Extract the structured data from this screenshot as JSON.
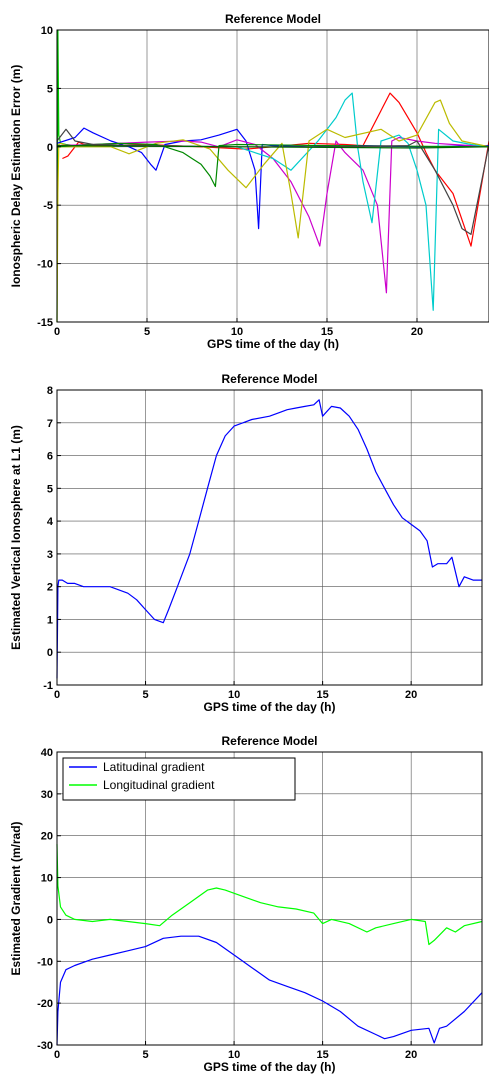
{
  "chart_data": [
    {
      "type": "line",
      "title": "Reference Model",
      "xlabel": "GPS time of the day (h)",
      "ylabel": "Ionospheric Delay Estimation Error (m)",
      "xlim": [
        0,
        24
      ],
      "ylim": [
        -15,
        10
      ],
      "xticks": [
        0,
        5,
        10,
        15,
        20
      ],
      "yticks": [
        -15,
        -10,
        -5,
        0,
        5,
        10
      ],
      "grid": true,
      "series": [
        {
          "color": "#00cc00",
          "x": [
            0,
            0.05,
            0.1,
            0.2,
            0.5,
            1.0
          ],
          "y": [
            -15,
            10,
            1.0,
            0.3,
            0.2,
            0.1
          ]
        },
        {
          "color": "#cccc00",
          "x": [
            0,
            0.05,
            0.1,
            0.2,
            0.5
          ],
          "y": [
            -15,
            -4,
            0.2,
            0.3,
            0.1
          ]
        },
        {
          "color": "#ff0000",
          "x": [
            0.3,
            0.6,
            0.9,
            1.2,
            1.5,
            3.0,
            5.0,
            8.0,
            10.5,
            12.0,
            14.0,
            16.0,
            17.0,
            18.5,
            19.0,
            19.5,
            20.0,
            20.5,
            21.0,
            22.0,
            23.0,
            24.0
          ],
          "y": [
            -1.0,
            -0.8,
            -0.2,
            0.4,
            0.2,
            0.1,
            0.2,
            0.0,
            -0.2,
            0.0,
            0.3,
            0.2,
            0.1,
            4.6,
            3.8,
            2.5,
            1.2,
            -0.5,
            -2.0,
            -4.0,
            -8.5,
            0.5
          ]
        },
        {
          "color": "#0000ff",
          "x": [
            0.0,
            1.0,
            1.5,
            2.0,
            3.0,
            4.0,
            4.7,
            5.2,
            5.5,
            6.0,
            7.0,
            8.0,
            9.0,
            10.0,
            10.5,
            11.0,
            11.2,
            11.4,
            12.0,
            14.0,
            17.0,
            20.0,
            24.0
          ],
          "y": [
            0.3,
            0.8,
            1.6,
            1.2,
            0.5,
            0.0,
            -0.5,
            -1.5,
            -2.0,
            0.2,
            0.5,
            0.6,
            1.0,
            1.5,
            0.5,
            -2.0,
            -7.0,
            0.2,
            0.1,
            0.0,
            0.1,
            0.0,
            0.1
          ]
        },
        {
          "color": "#cc00cc",
          "x": [
            0.0,
            2.0,
            5.0,
            7.0,
            8.0,
            9.0,
            10.0,
            11.0,
            12.0,
            13.0,
            14.0,
            14.6,
            15.0,
            15.5,
            16.0,
            17.0,
            17.8,
            18.3,
            18.6,
            19.0,
            20.0,
            21.0,
            22.0,
            23.0,
            24.0
          ],
          "y": [
            0.1,
            0.2,
            0.4,
            0.5,
            0.4,
            0.0,
            0.6,
            0.2,
            -1.0,
            -3.0,
            -6.0,
            -8.5,
            -4.0,
            0.5,
            -0.5,
            -2.0,
            -5.0,
            -12.5,
            0.5,
            0.8,
            0.5,
            0.3,
            0.2,
            0.1,
            0.0
          ]
        },
        {
          "color": "#00cccc",
          "x": [
            0.0,
            5.0,
            10.0,
            12.0,
            13.0,
            14.5,
            15.5,
            16.0,
            16.4,
            16.7,
            17.0,
            17.5,
            18.0,
            19.0,
            19.5,
            20.0,
            20.5,
            20.9,
            21.2,
            22.0,
            23.0,
            24.0
          ],
          "y": [
            0.0,
            0.1,
            0.0,
            -1.0,
            -2.0,
            0.5,
            2.5,
            4.0,
            4.6,
            0.0,
            -3.0,
            -6.5,
            0.5,
            1.0,
            0.3,
            -2.0,
            -5.0,
            -14.0,
            1.5,
            0.5,
            0.2,
            0.0
          ]
        },
        {
          "color": "#bbbb00",
          "x": [
            0.0,
            3.0,
            4.0,
            5.5,
            7.0,
            8.5,
            9.5,
            10.5,
            11.5,
            12.5,
            13.0,
            13.4,
            14.0,
            15.0,
            16.0,
            18.0,
            19.0,
            20.0,
            21.0,
            21.3,
            21.8,
            22.5,
            24.0
          ],
          "y": [
            0.0,
            0.0,
            -0.6,
            0.3,
            0.6,
            -0.2,
            -2.0,
            -3.5,
            -1.5,
            0.3,
            -4.0,
            -7.8,
            0.5,
            1.5,
            0.8,
            1.5,
            0.5,
            1.0,
            3.8,
            4.0,
            2.0,
            0.5,
            0.0
          ]
        },
        {
          "color": "#008800",
          "x": [
            0.0,
            2.0,
            3.5,
            5.5,
            6.0,
            7.0,
            7.5,
            8.0,
            8.5,
            8.8,
            9.0,
            10.0,
            15.0,
            24.0
          ],
          "y": [
            0.0,
            0.2,
            0.3,
            0.2,
            0.0,
            -0.5,
            -1.0,
            -1.5,
            -2.5,
            -3.4,
            0.1,
            0.2,
            0.1,
            0.0
          ]
        },
        {
          "color": "#444444",
          "x": [
            0.0,
            0.5,
            1.0,
            2.0,
            5.0,
            10.0,
            15.0,
            19.5,
            20.0,
            21.0,
            22.0,
            22.5,
            23.0,
            24.0
          ],
          "y": [
            0.5,
            1.5,
            0.5,
            0.2,
            0.1,
            0.0,
            0.0,
            0.1,
            0.5,
            -2.0,
            -5.0,
            -7.0,
            -7.5,
            0.2
          ]
        },
        {
          "color": "#006600",
          "x": [
            0.0,
            10.0,
            20.0,
            24.0
          ],
          "y": [
            0.1,
            0.0,
            -0.1,
            0.0
          ]
        }
      ]
    },
    {
      "type": "line",
      "title": "Reference Model",
      "xlabel": "GPS time of the day (h)",
      "ylabel": "Estimated Vertical Ionosphere at L1 (m)",
      "xlim": [
        0,
        24
      ],
      "ylim": [
        -1,
        8
      ],
      "xticks": [
        0,
        5,
        10,
        15,
        20
      ],
      "yticks": [
        -1,
        0,
        1,
        2,
        3,
        4,
        5,
        6,
        7,
        8
      ],
      "grid": true,
      "series": [
        {
          "color": "#0000ff",
          "x": [
            0.0,
            0.05,
            0.1,
            0.3,
            0.6,
            1.0,
            1.5,
            2.0,
            3.0,
            4.0,
            4.5,
            5.0,
            5.5,
            6.0,
            6.3,
            6.8,
            7.5,
            8.0,
            8.5,
            9.0,
            9.5,
            10.0,
            10.5,
            11.0,
            12.0,
            12.5,
            13.0,
            13.5,
            14.0,
            14.5,
            14.8,
            15.0,
            15.5,
            16.0,
            16.5,
            17.0,
            17.5,
            18.0,
            18.5,
            19.0,
            19.5,
            20.0,
            20.5,
            20.9,
            21.2,
            21.5,
            22.0,
            22.3,
            22.7,
            23.0,
            23.5,
            24.0
          ],
          "y": [
            -0.8,
            2.0,
            2.2,
            2.2,
            2.1,
            2.1,
            2.0,
            2.0,
            2.0,
            1.8,
            1.6,
            1.3,
            1.0,
            0.9,
            1.3,
            2.0,
            3.0,
            4.0,
            5.0,
            6.0,
            6.6,
            6.9,
            7.0,
            7.1,
            7.2,
            7.3,
            7.4,
            7.45,
            7.5,
            7.55,
            7.7,
            7.2,
            7.5,
            7.45,
            7.2,
            6.8,
            6.2,
            5.5,
            5.0,
            4.5,
            4.1,
            3.9,
            3.7,
            3.4,
            2.6,
            2.7,
            2.7,
            2.9,
            2.0,
            2.3,
            2.2,
            2.2
          ]
        }
      ]
    },
    {
      "type": "line",
      "title": "Reference Model",
      "xlabel": "GPS time of the day (h)",
      "ylabel": "Estimated Gradient (m/rad)",
      "xlim": [
        0,
        24
      ],
      "ylim": [
        -30,
        40
      ],
      "xticks": [
        0,
        5,
        10,
        15,
        20
      ],
      "yticks": [
        -30,
        -20,
        -10,
        0,
        10,
        20,
        30,
        40
      ],
      "grid": true,
      "legend": "top-left",
      "series": [
        {
          "name": "Latitudinal gradient",
          "color": "#0000ff",
          "x": [
            0.0,
            0.05,
            0.2,
            0.5,
            1.0,
            2.0,
            3.0,
            4.0,
            5.0,
            6.0,
            7.0,
            8.0,
            9.0,
            10.0,
            11.0,
            12.0,
            13.0,
            14.0,
            15.0,
            16.0,
            17.0,
            18.0,
            18.5,
            19.0,
            20.0,
            21.0,
            21.3,
            21.6,
            22.0,
            23.0,
            24.0
          ],
          "y": [
            -30,
            -22,
            -15,
            -12,
            -11,
            -9.5,
            -8.5,
            -7.5,
            -6.5,
            -4.5,
            -4.0,
            -4.0,
            -5.5,
            -8.5,
            -11.5,
            -14.5,
            -16.0,
            -17.5,
            -19.5,
            -22.0,
            -25.5,
            -27.5,
            -28.5,
            -28.0,
            -26.5,
            -26.0,
            -29.5,
            -26.0,
            -25.5,
            -22.0,
            -17.5
          ]
        },
        {
          "name": "Longitudinal gradient",
          "color": "#00ff00",
          "x": [
            0.0,
            0.05,
            0.2,
            0.5,
            1.0,
            2.0,
            3.0,
            4.0,
            5.0,
            5.8,
            6.5,
            7.5,
            8.5,
            9.0,
            9.5,
            10.5,
            11.5,
            12.5,
            13.5,
            14.5,
            15.0,
            15.5,
            16.5,
            17.5,
            18.0,
            19.0,
            20.0,
            20.8,
            21.0,
            21.3,
            22.0,
            22.5,
            23.0,
            24.0
          ],
          "y": [
            18.0,
            8.0,
            3.0,
            1.0,
            0.0,
            -0.5,
            0.0,
            -0.5,
            -1.0,
            -1.5,
            1.0,
            4.0,
            7.0,
            7.5,
            7.0,
            5.5,
            4.0,
            3.0,
            2.5,
            1.5,
            -1.0,
            0.0,
            -1.0,
            -3.0,
            -2.0,
            -1.0,
            0.0,
            -0.5,
            -6.0,
            -5.0,
            -2.0,
            -3.0,
            -1.5,
            -0.5
          ]
        }
      ]
    }
  ]
}
